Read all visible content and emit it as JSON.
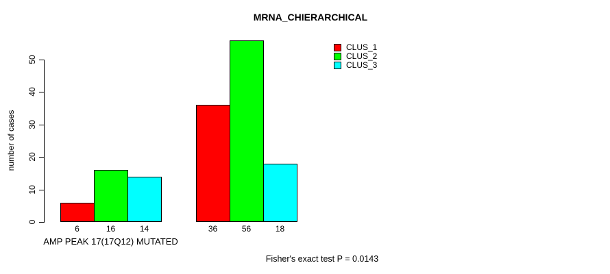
{
  "chart_data": {
    "type": "bar",
    "title": "MRNA_CHIERARCHICAL",
    "ylabel": "number of cases",
    "xlabel": "",
    "ylim": [
      0,
      56
    ],
    "y_ticks": [
      0,
      10,
      20,
      30,
      40,
      50
    ],
    "grid": false,
    "legend_position": "top-right",
    "legend_entries": [
      "CLUS_1",
      "CLUS_2",
      "CLUS_3"
    ],
    "categories": [
      "AMP PEAK 17(17Q12) MUTATED",
      ""
    ],
    "series": [
      {
        "name": "CLUS_1",
        "color": "#ff0000",
        "values": [
          6,
          36
        ]
      },
      {
        "name": "CLUS_2",
        "color": "#00ff00",
        "values": [
          16,
          56
        ]
      },
      {
        "name": "CLUS_3",
        "color": "#00ffff",
        "values": [
          14,
          18
        ]
      }
    ],
    "bar_value_labels": [
      [
        "6",
        "16",
        "14"
      ],
      [
        "36",
        "56",
        "18"
      ]
    ],
    "annotation": "Fisher's exact test P = 0.0143",
    "colors": {
      "axis": "#000000",
      "text": "#000000",
      "background": "#ffffff"
    }
  }
}
